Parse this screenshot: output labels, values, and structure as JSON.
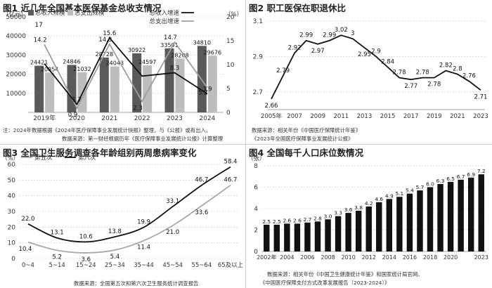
{
  "charts": [
    {
      "title": "图1 近几年全国基本医保基金总收支情况",
      "notes": [
        "注：2024年数据根据《2024年医疗保障事业发展统计快报》整理，与《公报》或有出入。",
        "数据来源：第一财经根据历年《医疗保障事业发展统计公报》计算整理"
      ],
      "chart_data": {
        "type": "bar",
        "categories": [
          "2019年",
          "2020",
          "2021",
          "2022",
          "2023",
          "2024"
        ],
        "series": [
          {
            "name": "总收入规模",
            "kind": "bar",
            "axis": "left",
            "color": "#5a5a5a",
            "values": [
              24421,
              24846,
              28728,
              30922,
              33501,
              34810
            ]
          },
          {
            "name": "总支出规模",
            "kind": "bar",
            "axis": "left",
            "color": "#bdbdbd",
            "values": [
              20854,
              21032,
              24043,
              24597,
              28208,
              29676
            ]
          },
          {
            "name": "总收入增速",
            "kind": "line",
            "axis": "right",
            "color": "#111111",
            "values": [
              10.2,
              1.7,
              15.6,
              7.6,
              8.3,
              3.9
            ]
          },
          {
            "name": "总支出增速",
            "kind": "line",
            "axis": "right",
            "color": "#9e9e9e",
            "values": [
              14.2,
              0.9,
              14.3,
              2.3,
              14.7,
              5.2
            ]
          }
        ],
        "value_labels": {
          "bars_income": [
            "24421",
            "24846",
            "28728",
            "30922",
            "33501",
            "34810"
          ],
          "bars_expense": [
            "20854",
            "21032",
            "24043",
            "24597",
            "28208",
            "29676"
          ],
          "growth_income": [
            "",
            "1.7",
            "15.6",
            "",
            "8.3",
            "3.9"
          ],
          "growth_expense": [
            "14.2",
            "0.9",
            "14.3",
            "2.3",
            "14.7",
            "5.2"
          ]
        },
        "extra_labels": [
          {
            "text": "17",
            "anchor_index": 0
          }
        ],
        "yleft_unit": "（亿元）",
        "yleft_ticks": [
          "10000",
          "20000",
          "30000",
          "40000",
          "50000"
        ],
        "ylim_left": [
          0,
          50000
        ],
        "yright_unit": "（%）",
        "yright_ticks": [
          "0",
          "5",
          "10",
          "15",
          "20"
        ],
        "ylim_right": [
          0,
          20
        ],
        "legend": [
          "总收入规模",
          "总支出规模",
          "总收入增速",
          "总支出增速"
        ],
        "grid": true
      }
    },
    {
      "title": "图2 职工医保在职退休比",
      "notes": [
        "数据来源：相关年份《中国医疗保障统计年鉴》",
        "《2023年全国医疗保障事业发展统计公报》"
      ],
      "chart_data": {
        "type": "line",
        "x": [
          2005,
          2006,
          2007,
          2008,
          2009,
          2010,
          2011,
          2012,
          2013,
          2014,
          2015,
          2016,
          2017,
          2018,
          2019,
          2020,
          2021,
          2022,
          2023
        ],
        "x_ticks": [
          "2005年",
          "2007",
          "2009",
          "2011",
          "2013",
          "2015",
          "2017",
          "2019",
          "2021",
          "2023"
        ],
        "values": [
          2.66,
          2.79,
          2.92,
          2.99,
          2.97,
          2.99,
          3.02,
          3.0,
          2.95,
          2.9,
          2.84,
          2.78,
          2.77,
          2.78,
          2.78,
          2.82,
          2.8,
          2.76,
          2.71
        ],
        "value_labels": [
          "2.66",
          "2.79",
          "2.92",
          "2.99",
          "2.97",
          "2.99",
          "3.02",
          "3",
          "2.95",
          "2.9",
          "2.84",
          "2.78",
          "2.77",
          "2.78",
          "2.78",
          "2.82",
          "2.8",
          "2.76",
          "2.71"
        ],
        "y_ticks": [
          "2.7",
          "2.9",
          "3.1"
        ],
        "ylim": [
          2.6,
          3.1
        ],
        "color": "#111111",
        "grid": true
      }
    },
    {
      "title": "图3 全国卫生服务调查各年龄组别两周患病率变化",
      "notes": [
        "数据来源：全国第五次和第六次卫生服务统计调查报告"
      ],
      "chart_data": {
        "type": "line",
        "categories": [
          "0~4",
          "5~14",
          "15~24",
          "25~34",
          "35~44",
          "45~54",
          "55~64",
          "65及以上"
        ],
        "series": [
          {
            "name": "第五次",
            "color": "#a9a9a9",
            "values": [
              10.4,
              5.2,
              3.6,
              5.4,
              11.4,
              21.0,
              33.6,
              46.7
            ]
          },
          {
            "name": "第六次",
            "color": "#111111",
            "values": [
              22.0,
              13.1,
              10.6,
              13.8,
              19.9,
              33.1,
              46.7,
              58.4
            ]
          }
        ],
        "value_labels": {
          "fifth": [
            "10.4",
            "5.2",
            "3.6",
            "5.4",
            "11.4",
            "21.0",
            "33.6",
            "46.7"
          ],
          "sixth": [
            "22.0",
            "13.1",
            "10.6",
            "13.8",
            "19.9",
            "33.1",
            "46.7",
            "58.4"
          ]
        },
        "y_unit": "（%）",
        "y_ticks": [
          "0",
          "10",
          "20",
          "30",
          "40",
          "50",
          "60"
        ],
        "ylim": [
          0,
          60
        ],
        "legend": [
          "第五次",
          "第六次"
        ],
        "grid": true
      }
    },
    {
      "title": "图4 全国每千人口床位数情况",
      "notes": [
        "数据来源：相关年份《中国卫生健康统计年鉴》和国家统计局官网、",
        "《中国医疗保障支付方式改革发展报告（2023-2024）》"
      ],
      "chart_data": {
        "type": "bar",
        "categories": [
          "2002年",
          "2003",
          "2004",
          "2005",
          "2006",
          "2007",
          "2008",
          "2009",
          "2010",
          "2011",
          "2012",
          "2013",
          "2014",
          "2015",
          "2016",
          "2017",
          "2018",
          "2019",
          "2020",
          "2021",
          "2022",
          "2023"
        ],
        "x_ticks": [
          "2002年",
          "2004",
          "2006",
          "2008",
          "2010",
          "2012",
          "2014",
          "2016",
          "2018",
          "2020",
          "2023"
        ],
        "values": [
          2.5,
          2.5,
          2.6,
          2.6,
          2.7,
          2.8,
          3.0,
          3.3,
          3.6,
          3.8,
          4.2,
          4.6,
          4.9,
          5.1,
          5.4,
          5.7,
          6.0,
          6.3,
          6.5,
          6.7,
          6.9,
          7.2
        ],
        "value_labels": [
          "2.5",
          "2.5",
          "2.6",
          "2.6",
          "2.7",
          "2.8",
          "3.0",
          "3.3",
          "3.6",
          "3.8",
          "4.2",
          "4.6",
          "4.9",
          "5.1",
          "5.4",
          "5.7",
          "6.0",
          "6.3",
          "6.5",
          "6.7",
          "6.9",
          "7.2"
        ],
        "y_unit": "（张）",
        "y_ticks": [
          "0",
          "2",
          "4",
          "6",
          "8"
        ],
        "ylim": [
          0,
          8
        ],
        "color": "#111111",
        "grid": true
      }
    }
  ]
}
